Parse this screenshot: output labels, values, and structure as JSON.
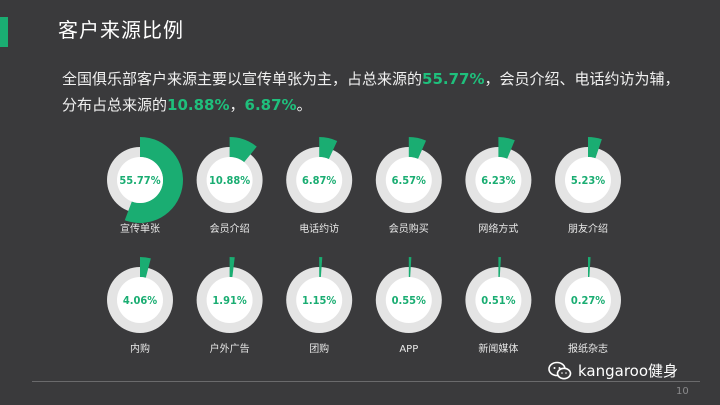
{
  "header": {
    "title": "客户来源比例",
    "summary_line1_prefix": "全国俱乐部客户来源主要以宣传单张为主，占总来源的",
    "summary_line1_highlight": "55.77%",
    "summary_line1_suffix": "，会员介绍、电话约访为辅，",
    "summary_line2_prefix": "分布占总来源的",
    "summary_line2_highlight1": "10.88%",
    "summary_line2_sep": "，",
    "summary_line2_highlight2": "6.87%",
    "summary_line2_suffix": "。"
  },
  "chart_data": {
    "type": "pie",
    "categories": [
      "宣传单张",
      "会员介绍",
      "电话约访",
      "会员购买",
      "网络方式",
      "朋友介绍",
      "内购",
      "户外广告",
      "团购",
      "APP",
      "新闻媒体",
      "报纸杂志"
    ],
    "values": [
      55.77,
      10.88,
      6.87,
      6.57,
      6.23,
      5.23,
      4.06,
      1.91,
      1.15,
      0.55,
      0.51,
      0.27
    ],
    "value_labels": [
      "55.77%",
      "10.88%",
      "6.87%",
      "6.57%",
      "6.23%",
      "5.23%",
      "4.06%",
      "1.91%",
      "1.15%",
      "0.55%",
      "0.51%",
      "0.27%"
    ],
    "colors": {
      "slice": "#1aad72",
      "ring": "#e4e4e4",
      "inner": "#ffffff",
      "text": "#1aad72",
      "label": "#e8e8e8"
    }
  },
  "footer": {
    "watermark": "kangaroo健身",
    "page_number": "10"
  }
}
